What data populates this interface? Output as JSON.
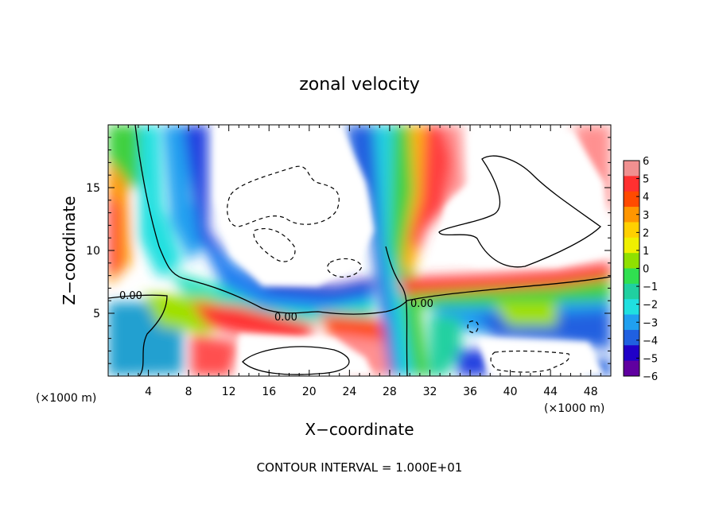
{
  "chart_data": {
    "type": "heatmap",
    "title": "zonal velocity",
    "xlabel": "X−coordinate",
    "ylabel": "Z−coordinate",
    "x_unit_left": "(×1000 m)",
    "x_unit_right": "(×1000 m)",
    "xlim": [
      0,
      50
    ],
    "ylim": [
      0,
      20
    ],
    "x_ticks": [
      4,
      8,
      12,
      16,
      20,
      24,
      28,
      32,
      36,
      40,
      44,
      48
    ],
    "y_ticks": [
      5,
      10,
      15
    ],
    "footer": "CONTOUR INTERVAL = 1.000E+01",
    "contour_labels": [
      {
        "text": "0.00",
        "x": 2.6,
        "z": 6.4
      },
      {
        "text": "0.00",
        "x": 18.0,
        "z": 4.7
      },
      {
        "text": "0.00",
        "x": 31.3,
        "z": 5.8
      }
    ],
    "colorbar": {
      "min": -6,
      "max": 6,
      "ticks": [
        6,
        5,
        4,
        3,
        2,
        1,
        0,
        -1,
        -2,
        -3,
        -4,
        -5,
        -6
      ],
      "tick_labels": [
        "6",
        "5",
        "4",
        "3",
        "2",
        "1",
        "0",
        "−1",
        "−2",
        "−3",
        "−4",
        "−5",
        "−6"
      ],
      "colors": [
        "#f09090",
        "#ff3030",
        "#ff4a00",
        "#ff9600",
        "#ffd000",
        "#f0f000",
        "#90e000",
        "#30e050",
        "#20d0a0",
        "#20e0e0",
        "#20a0f0",
        "#2060e0",
        "#2000c8",
        "#6000a0"
      ]
    }
  }
}
